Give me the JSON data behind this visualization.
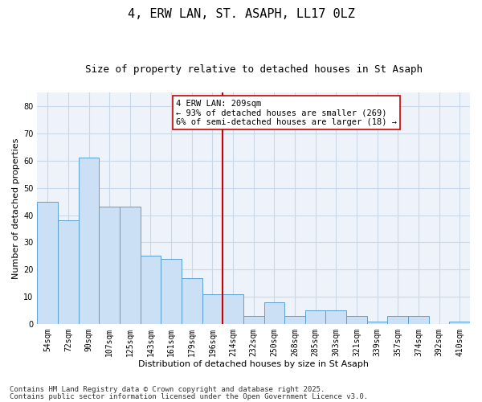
{
  "title": "4, ERW LAN, ST. ASAPH, LL17 0LZ",
  "subtitle": "Size of property relative to detached houses in St Asaph",
  "xlabel": "Distribution of detached houses by size in St Asaph",
  "ylabel": "Number of detached properties",
  "categories": [
    "54sqm",
    "72sqm",
    "90sqm",
    "107sqm",
    "125sqm",
    "143sqm",
    "161sqm",
    "179sqm",
    "196sqm",
    "214sqm",
    "232sqm",
    "250sqm",
    "268sqm",
    "285sqm",
    "303sqm",
    "321sqm",
    "339sqm",
    "357sqm",
    "374sqm",
    "392sqm",
    "410sqm"
  ],
  "values": [
    45,
    38,
    61,
    43,
    43,
    25,
    24,
    17,
    11,
    11,
    3,
    8,
    3,
    5,
    5,
    3,
    1,
    3,
    3,
    0,
    1
  ],
  "bar_color": "#cce0f5",
  "bar_edge_color": "#5a9fd4",
  "vline_color": "#cc0000",
  "annotation_title": "4 ERW LAN: 209sqm",
  "annotation_line1": "← 93% of detached houses are smaller (269)",
  "annotation_line2": "6% of semi-detached houses are larger (18) →",
  "annotation_box_color": "#cc0000",
  "footnote1": "Contains HM Land Registry data © Crown copyright and database right 2025.",
  "footnote2": "Contains public sector information licensed under the Open Government Licence v3.0.",
  "ylim": [
    0,
    85
  ],
  "yticks": [
    0,
    10,
    20,
    30,
    40,
    50,
    60,
    70,
    80
  ],
  "grid_color": "#c8d8e8",
  "bg_color": "#eef3fa",
  "title_fontsize": 11,
  "subtitle_fontsize": 9,
  "axis_label_fontsize": 8,
  "tick_fontsize": 7,
  "footnote_fontsize": 6.5,
  "annotation_fontsize": 7.5
}
